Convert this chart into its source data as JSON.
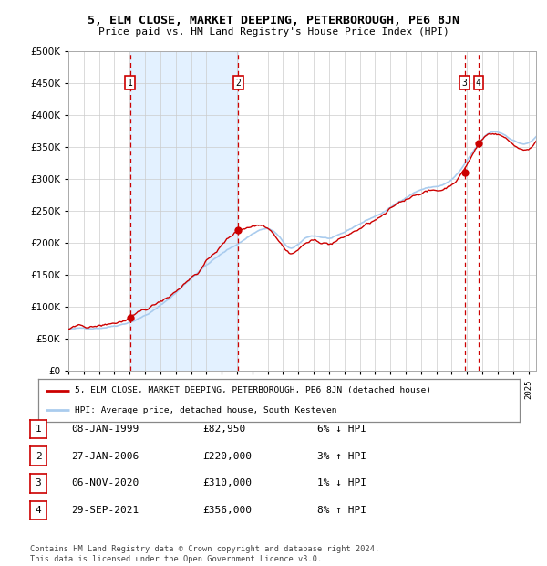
{
  "title": "5, ELM CLOSE, MARKET DEEPING, PETERBOROUGH, PE6 8JN",
  "subtitle": "Price paid vs. HM Land Registry's House Price Index (HPI)",
  "legend_line1": "5, ELM CLOSE, MARKET DEEPING, PETERBOROUGH, PE6 8JN (detached house)",
  "legend_line2": "HPI: Average price, detached house, South Kesteven",
  "footer": "Contains HM Land Registry data © Crown copyright and database right 2024.\nThis data is licensed under the Open Government Licence v3.0.",
  "transactions": [
    {
      "num": 1,
      "date": "08-JAN-1999",
      "price": 82950,
      "hpi_pct": "6% ↓ HPI",
      "x_year": 1999.03
    },
    {
      "num": 2,
      "date": "27-JAN-2006",
      "price": 220000,
      "hpi_pct": "3% ↑ HPI",
      "x_year": 2006.08
    },
    {
      "num": 3,
      "date": "06-NOV-2020",
      "price": 310000,
      "hpi_pct": "1% ↓ HPI",
      "x_year": 2020.85
    },
    {
      "num": 4,
      "date": "29-SEP-2021",
      "price": 356000,
      "hpi_pct": "8% ↑ HPI",
      "x_year": 2021.75
    }
  ],
  "background_color": "#ffffff",
  "plot_bg_color": "#ffffff",
  "grid_color": "#cccccc",
  "red_line_color": "#cc0000",
  "blue_line_color": "#aaccee",
  "shaded_region": [
    1999.03,
    2006.08
  ],
  "ylim": [
    0,
    500000
  ],
  "xlim": [
    1995.0,
    2025.5
  ],
  "yticks": [
    0,
    50000,
    100000,
    150000,
    200000,
    250000,
    300000,
    350000,
    400000,
    450000,
    500000
  ],
  "ytick_labels": [
    "£0",
    "£50K",
    "£100K",
    "£150K",
    "£200K",
    "£250K",
    "£300K",
    "£350K",
    "£400K",
    "£450K",
    "£500K"
  ]
}
